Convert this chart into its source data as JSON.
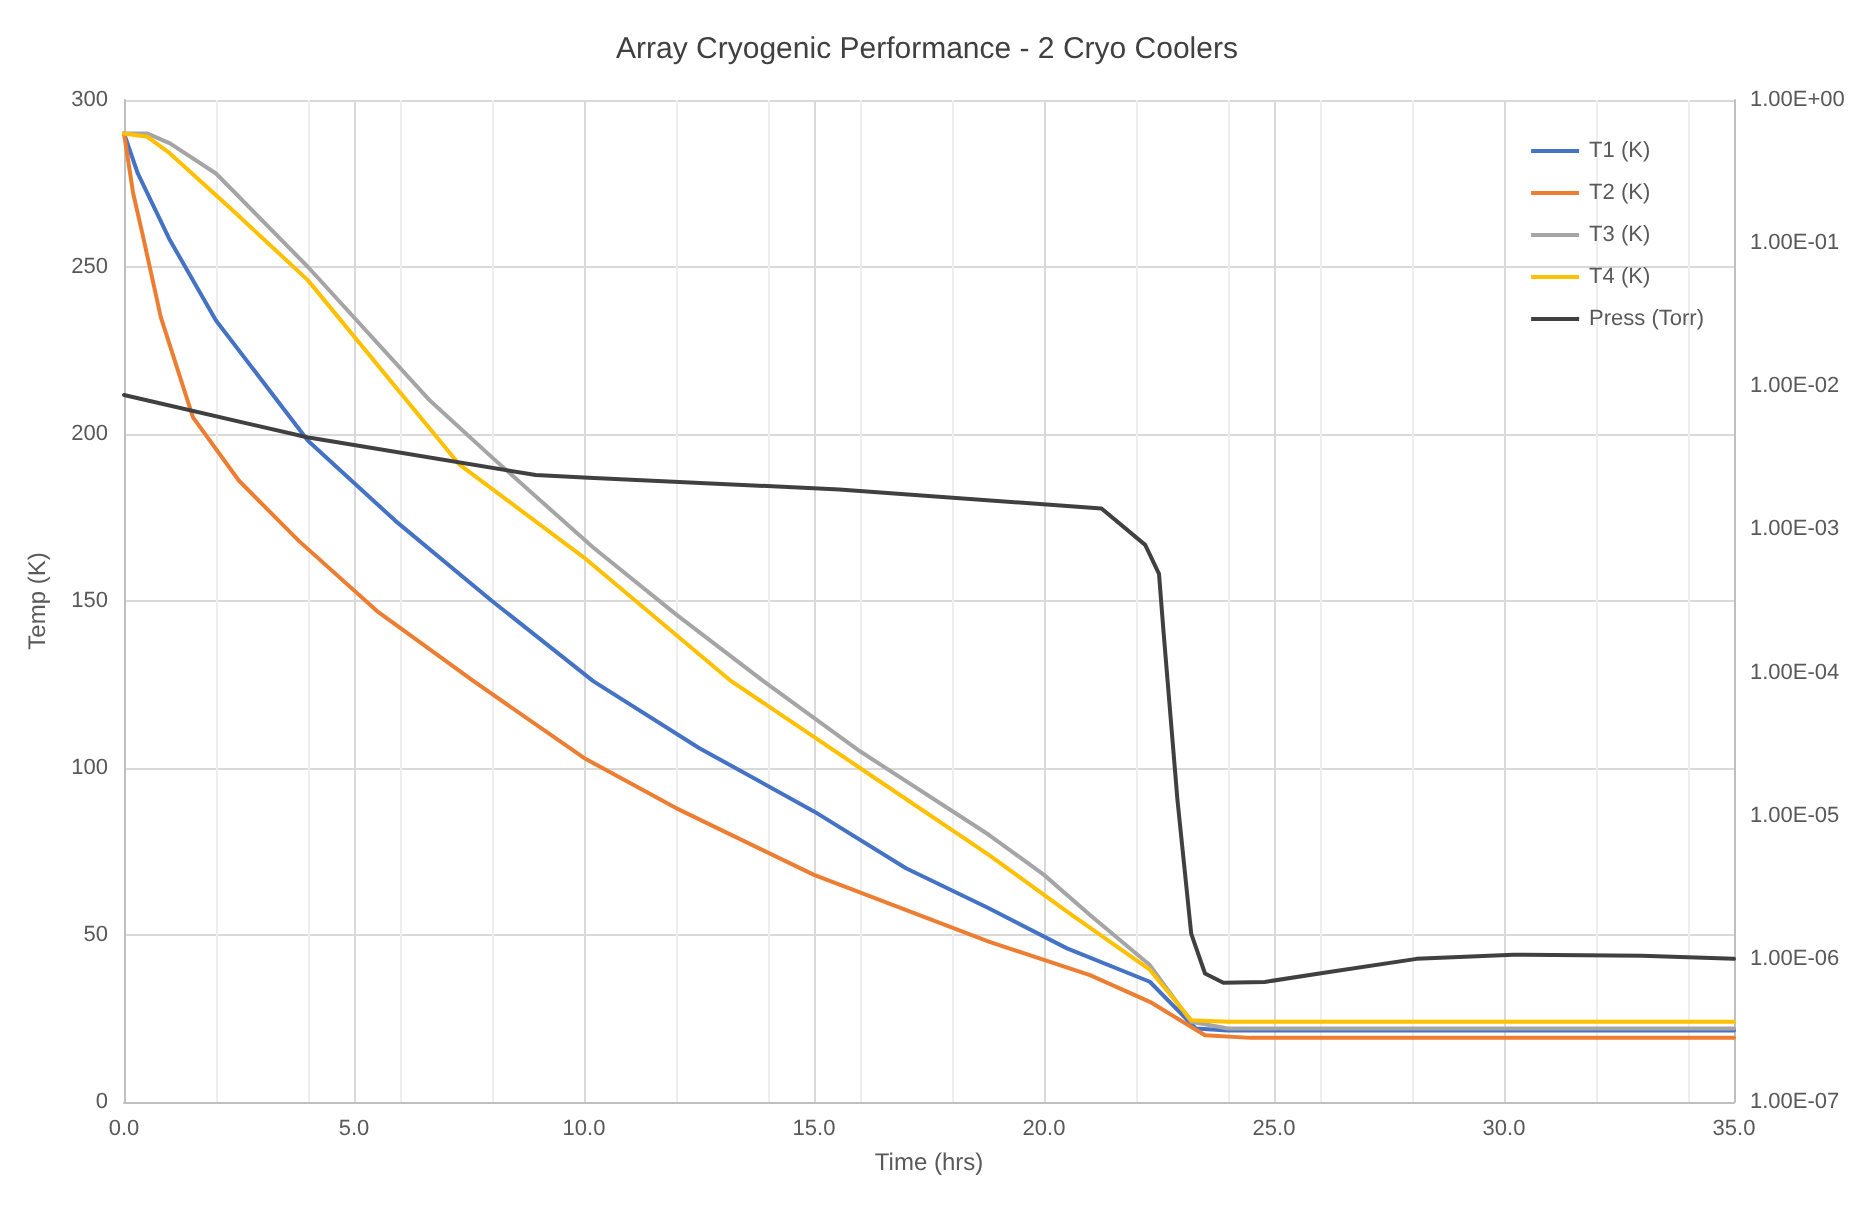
{
  "chart_data": {
    "type": "line",
    "title": "Array Cryogenic Performance - 2 Cryo Coolers",
    "xlabel": "Time (hrs)",
    "ylabel": "Temp (K)",
    "xlim": [
      0,
      35
    ],
    "xticks": [
      {
        "value": 0,
        "label": "0.0"
      },
      {
        "value": 5,
        "label": "5.0"
      },
      {
        "value": 10,
        "label": "10.0"
      },
      {
        "value": 15,
        "label": "15.0"
      },
      {
        "value": 20,
        "label": "20.0"
      },
      {
        "value": 25,
        "label": "25.0"
      },
      {
        "value": 30,
        "label": "30.0"
      },
      {
        "value": 35,
        "label": "35.0"
      }
    ],
    "ylim": [
      0,
      300
    ],
    "yticks": [
      0,
      50,
      100,
      150,
      200,
      250,
      300
    ],
    "y2lim": [
      1e-07,
      1
    ],
    "y2ticks": [
      {
        "value": 1,
        "label": "1.00E+00"
      },
      {
        "value": 0.1,
        "label": "1.00E-01"
      },
      {
        "value": 0.01,
        "label": "1.00E-02"
      },
      {
        "value": 0.001,
        "label": "1.00E-03"
      },
      {
        "value": 0.0001,
        "label": "1.00E-04"
      },
      {
        "value": 1e-05,
        "label": "1.00E-05"
      },
      {
        "value": 1e-06,
        "label": "1.00E-06"
      },
      {
        "value": 1e-07,
        "label": "1.00E-07"
      }
    ],
    "log": "y2",
    "grid": true,
    "legend": "top right",
    "marker": "none",
    "line_style": "solid",
    "series": [
      {
        "name": "T1 (K)",
        "color": "#4472c4",
        "x": [
          0,
          0.3,
          1.0,
          2.0,
          4.0,
          5.9,
          8.0,
          10.2,
          12.5,
          15.0,
          17.0,
          18.8,
          20.5,
          22.3,
          23.3,
          24.0,
          27.0,
          35.0
        ],
        "values": [
          290,
          278,
          258,
          234,
          198,
          174,
          150,
          126,
          106,
          87,
          70,
          58,
          46,
          36,
          22,
          21.4,
          21.4,
          21.4
        ]
      },
      {
        "name": "T2 (K)",
        "color": "#ed7d31",
        "x": [
          0,
          0.2,
          0.4,
          0.8,
          1.5,
          2.5,
          3.8,
          5.5,
          7.6,
          10.0,
          12.0,
          15.0,
          18.8,
          21.0,
          22.3,
          23.5,
          24.5,
          35.0
        ],
        "values": [
          290,
          272,
          260,
          235,
          205,
          186,
          168,
          147,
          126,
          103,
          88,
          68,
          48,
          38,
          30,
          20,
          19.2,
          19.2
        ]
      },
      {
        "name": "T3 (K)",
        "color": "#a5a5a5",
        "x": [
          0,
          0.5,
          1.0,
          2.0,
          4.0,
          6.65,
          8.0,
          10.2,
          12.0,
          13.9,
          16.0,
          18.8,
          20.0,
          21.0,
          22.3,
          23.2,
          24.0,
          27.0,
          35.0
        ],
        "values": [
          290,
          290,
          287,
          278,
          250,
          210,
          193,
          166,
          146,
          126,
          105,
          80,
          68,
          56,
          41,
          24,
          22,
          22,
          22
        ]
      },
      {
        "name": "T4 (K)",
        "color": "#ffc000",
        "x": [
          0,
          0.5,
          1.0,
          2.36,
          4.0,
          7.28,
          10.0,
          13.2,
          16.0,
          18.8,
          20.5,
          22.3,
          23.2,
          24.0,
          35.0
        ],
        "values": [
          290,
          289,
          284,
          267,
          246,
          191,
          163,
          126,
          100,
          74,
          57,
          39.6,
          24.5,
          24,
          24
        ]
      },
      {
        "name": "Press (Torr)",
        "color": "#404040",
        "axis": "y2",
        "x": [
          0,
          3.98,
          8.95,
          10.1,
          15.55,
          21.25,
          22.2,
          22.5,
          22.6,
          22.9,
          23.2,
          23.5,
          23.9,
          24.8,
          26.2,
          28.1,
          30.2,
          33.0,
          35.0
        ],
        "values": [
          0.0087,
          0.0044,
          0.0024,
          0.0023,
          0.0019,
          0.0014,
          0.00078,
          0.00049,
          0.00019,
          1.3e-05,
          1.5e-06,
          7.9e-07,
          6.8e-07,
          6.9e-07,
          8.1e-07,
          1e-06,
          1.07e-06,
          1.05e-06,
          1e-06
        ]
      }
    ]
  }
}
